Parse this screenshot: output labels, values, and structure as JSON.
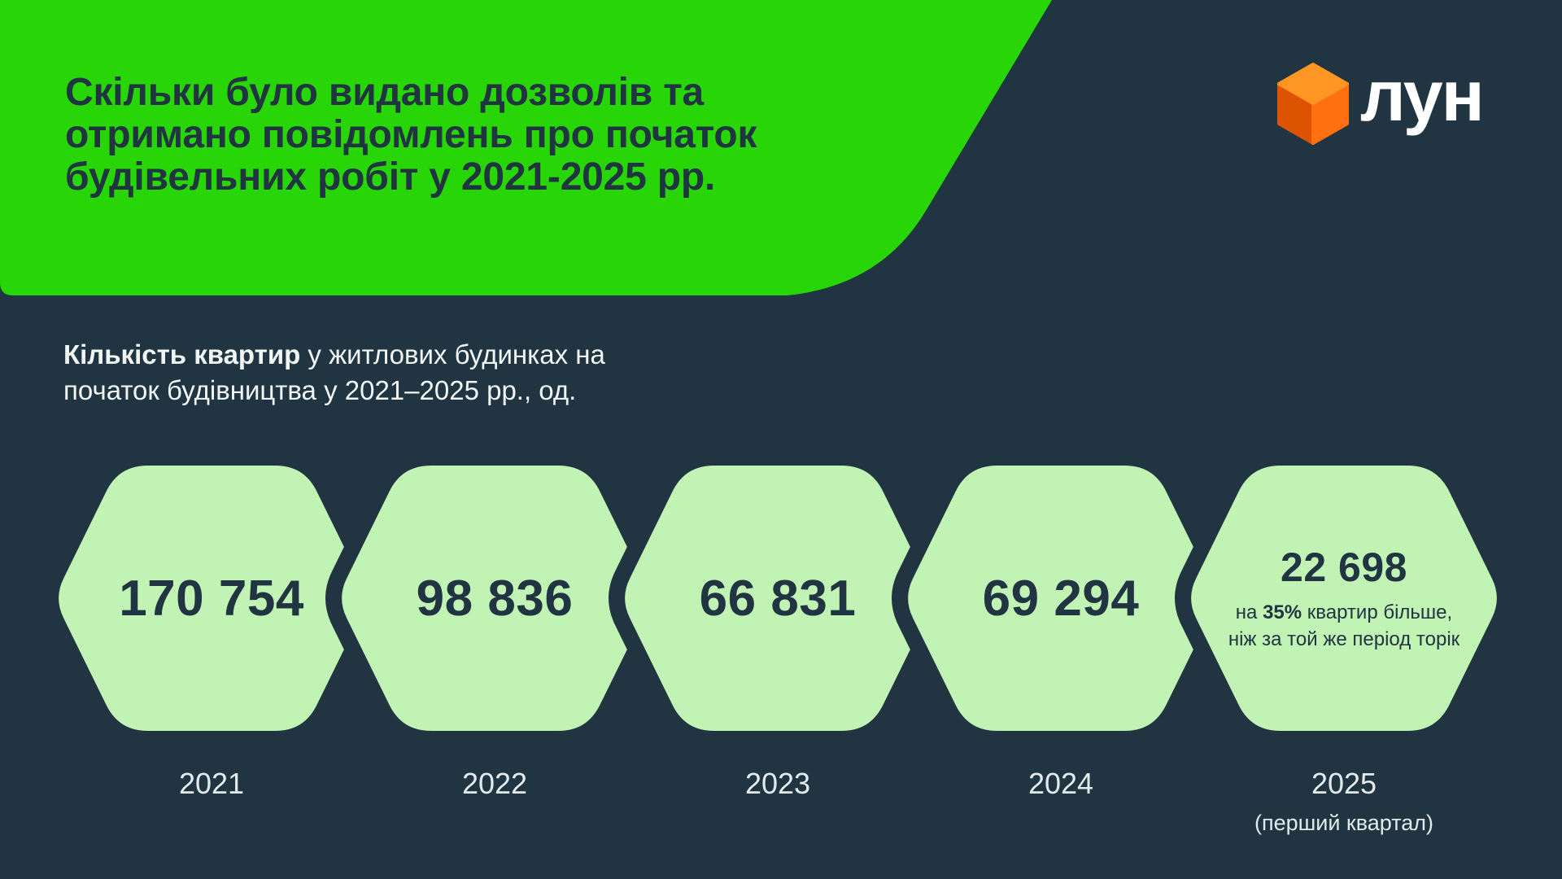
{
  "colors": {
    "background": "#203442",
    "ink": "#203442",
    "header_green": "#28d506",
    "hex_green": "#c0f3b4",
    "light_text": "#f1f5f4",
    "year_text": "#e2eaec",
    "cube_top": "#ff9623",
    "cube_left": "#dd5302",
    "cube_right": "#ff7110",
    "logo_text_color": "#ffffff"
  },
  "header": {
    "title_lines": [
      "Скільки було видано дозволів та",
      "отримано повідомлень про початок",
      "будівельних робіт у 2021-2025 рр."
    ]
  },
  "logo": {
    "text": "лун"
  },
  "subtitle": {
    "bold": "Кількість квартир",
    "rest": " у житлових будинках на",
    "line2": "початок будівництва у 2021–2025 рр., од."
  },
  "hexagons": [
    {
      "value": "170 754",
      "year": "2021"
    },
    {
      "value": "98 836",
      "year": "2022"
    },
    {
      "value": "66 831",
      "year": "2023"
    },
    {
      "value": "69 294",
      "year": "2024"
    },
    {
      "value": "22 698",
      "year": "2025",
      "year_note": "(перший квартал)",
      "note": {
        "prefix": "на ",
        "bold": "35%",
        "suffix": " квартир більше,",
        "line2": "ніж за той же період торік"
      }
    }
  ],
  "chart_data": {
    "type": "bar",
    "title": "Скільки було видано дозволів та отримано повідомлень про початок будівельних робіт у 2021-2025 рр.",
    "subtitle": "Кількість квартир у житлових будинках на початок будівництва у 2021–2025 рр., од.",
    "categories": [
      "2021",
      "2022",
      "2023",
      "2024",
      "2025 (перший квартал)"
    ],
    "values": [
      170754,
      98836,
      66831,
      69294,
      22698
    ],
    "value_labels": [
      "170 754",
      "98 836",
      "66 831",
      "69 294",
      "22 698"
    ],
    "annotations": [
      {
        "category": "2025 (перший квартал)",
        "text": "на 35% квартир більше, ніж за той же період торік"
      }
    ],
    "legend_position": "none",
    "grid": false
  }
}
